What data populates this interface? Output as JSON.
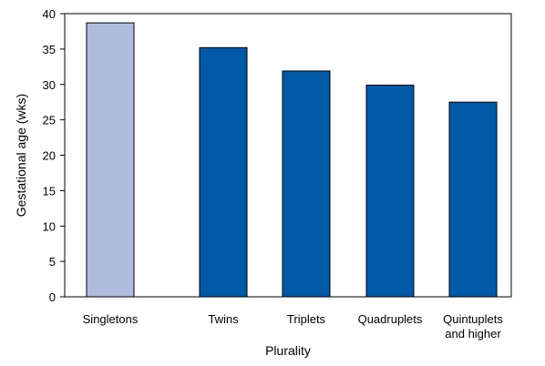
{
  "chart_data": {
    "type": "bar",
    "xlabel": "Plurality",
    "ylabel": "Gestational age (wks)",
    "ylim": [
      0,
      40
    ],
    "yticks": [
      0,
      5,
      10,
      15,
      20,
      25,
      30,
      35,
      40
    ],
    "categories": [
      [
        "Singletons"
      ],
      [
        "Twins"
      ],
      [
        "Triplets"
      ],
      [
        "Quadruplets"
      ],
      [
        "Quintuplets",
        "and higher"
      ]
    ],
    "values": [
      38.7,
      35.2,
      31.9,
      29.9,
      27.5
    ],
    "colors": [
      "#aebcdf",
      "#005aa8",
      "#005aa8",
      "#005aa8",
      "#005aa8"
    ],
    "grid": false,
    "legend": "none"
  }
}
